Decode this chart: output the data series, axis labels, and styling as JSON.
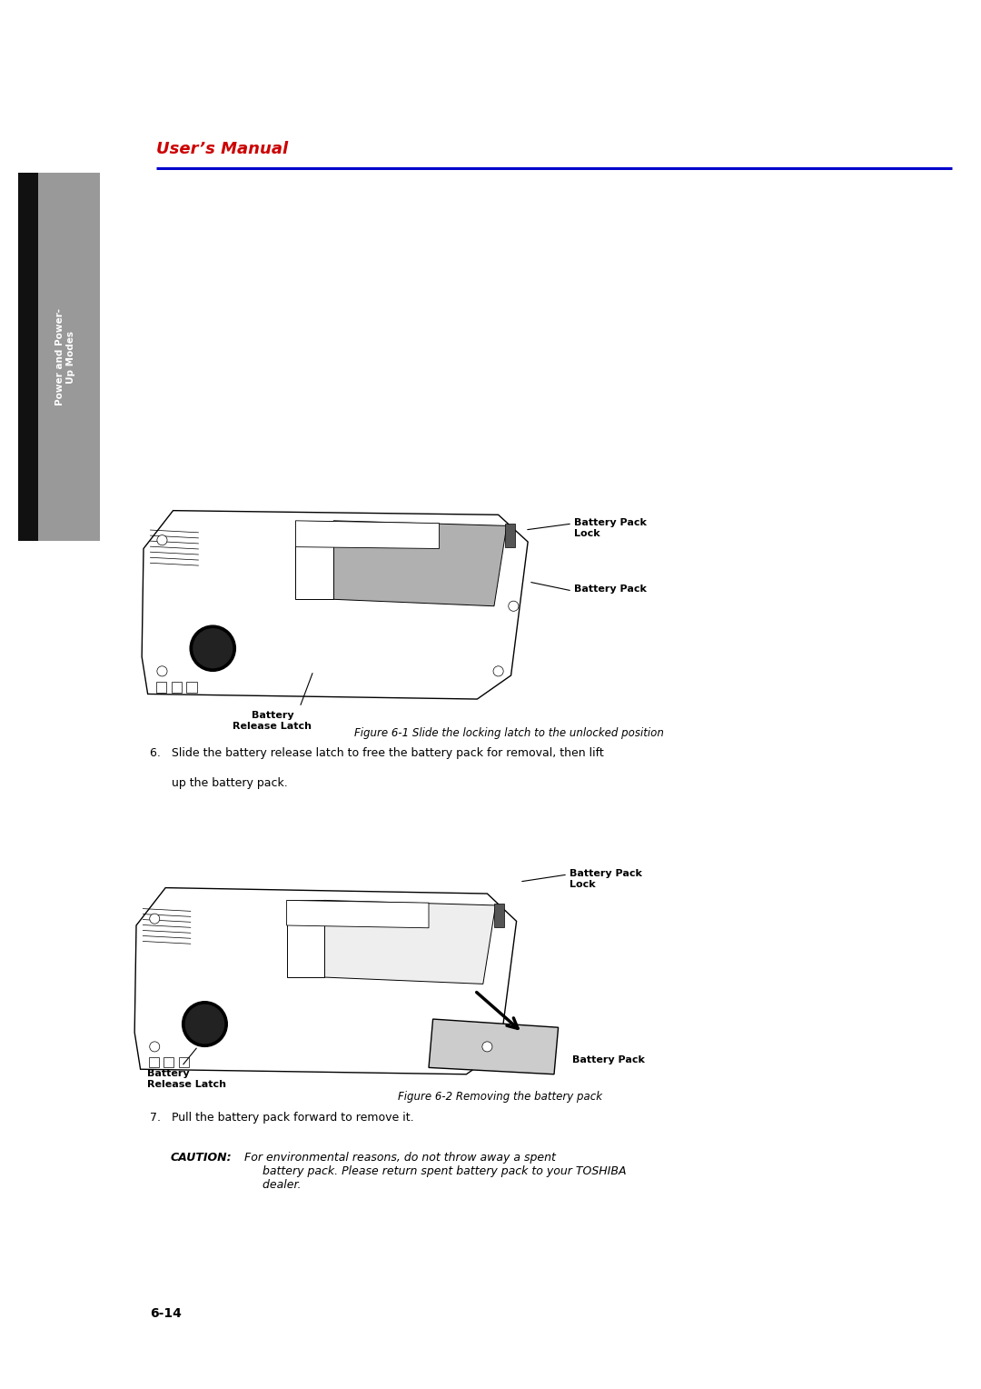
{
  "page_width": 10.8,
  "page_height": 15.28,
  "bg_color": "#ffffff",
  "header_title": "User’s Manual",
  "header_title_color": "#cc0000",
  "header_line_color": "#0000cc",
  "sidebar_bg": "#888888",
  "sidebar_dark": "#111111",
  "sidebar_text_color": "#ffffff",
  "sidebar_text": "Power and Power-\nUp Modes",
  "fig1_caption": "Figure 6-1 Slide the locking latch to the unlocked position",
  "fig2_caption": "Figure 6-2 Removing the battery pack",
  "step6_line1": "6.   Slide the battery release latch to free the battery pack for removal, then lift",
  "step6_line2": "      up the battery pack.",
  "step7": "7.   Pull the battery pack forward to remove it.",
  "caution_bold": "CAUTION:",
  "caution_rest": " For environmental reasons, do not throw away a spent\n      battery pack. Please return spent battery pack to your TOSHIBA\n      dealer.",
  "page_number": "6-14",
  "lbl_battery_pack_lock": "Battery Pack\nLock",
  "lbl_battery_pack": "Battery Pack",
  "lbl_battery_release_latch": "Battery\nRelease Latch",
  "lbl_battery_pack_lock2": "Battery Pack\nLock",
  "lbl_battery_release_latch2": "Battery\nRelease Latch",
  "lbl_battery_pack2": "Battery Pack"
}
